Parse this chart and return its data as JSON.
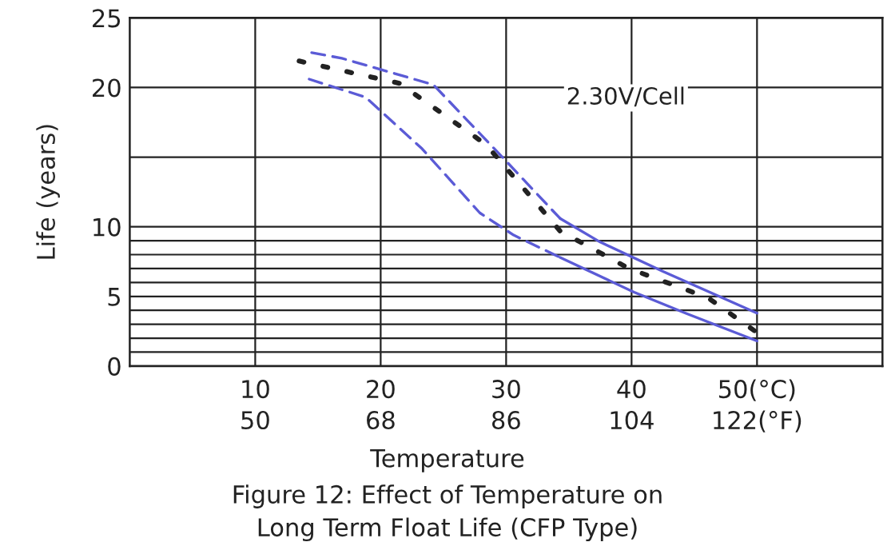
{
  "chart_data": {
    "type": "line",
    "xlabel": "Temperature",
    "ylabel": "Life (years)",
    "xlim": [
      0,
      60
    ],
    "xticks": [
      10,
      20,
      30,
      40,
      {
        "value": 50,
        "label": "50(°C)"
      }
    ],
    "x2lim": [
      32,
      140
    ],
    "x2ticks": [
      50,
      68,
      86,
      104,
      {
        "value": 122,
        "label": "122(°F)"
      }
    ],
    "ylim": [
      0,
      25
    ],
    "yticks": [
      0,
      {
        "value": 1,
        "label": null
      },
      {
        "value": 2,
        "label": null
      },
      {
        "value": 3,
        "label": null
      },
      {
        "value": 4,
        "label": null
      },
      5,
      {
        "value": 6,
        "label": null
      },
      {
        "value": 7,
        "label": null
      },
      {
        "value": 8,
        "label": null
      },
      {
        "value": 9,
        "label": null
      },
      10,
      {
        "value": 15,
        "label": null
      },
      20,
      25
    ],
    "grid": true,
    "marker": "none",
    "series": [
      {
        "color": "#5b5bd6",
        "line_style": "dashed",
        "x": [
          14.5,
          16.9,
          24.2,
          29.7,
          34.3
        ],
        "values": [
          22.5,
          22.1,
          20.2,
          15.0,
          10.6
        ]
      },
      {
        "color": "#5b5bd6",
        "line_style": "solid",
        "x": [
          34.3,
          37.5,
          42.5,
          50.0
        ],
        "values": [
          10.6,
          8.9,
          6.8,
          3.8
        ]
      },
      {
        "color": "#5b5bd6",
        "line_style": "dashed",
        "x": [
          14.3,
          18.8,
          23.3,
          27.9,
          30.6,
          34.3
        ],
        "values": [
          20.6,
          19.3,
          15.6,
          11.0,
          9.4,
          7.8
        ]
      },
      {
        "color": "#5b5bd6",
        "line_style": "solid",
        "x": [
          34.3,
          40.2,
          44.3,
          50.0
        ],
        "values": [
          7.8,
          5.3,
          3.8,
          1.8
        ]
      },
      {
        "color": "#222222",
        "line_style": "dotted",
        "x": [
          13.5,
          21.5,
          28.4,
          34.3,
          39.8,
          46.1,
          50.0
        ],
        "values": [
          21.9,
          20.3,
          15.9,
          9.7,
          7.0,
          4.9,
          2.4
        ]
      }
    ],
    "annotations": [
      "2.30V/Cell",
      "Figure 12: Effect of Temperature on\nLong Term Float Life (CFP Type)"
    ]
  }
}
